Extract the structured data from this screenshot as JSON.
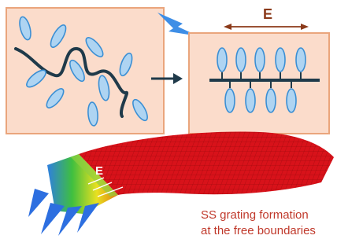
{
  "top_field": {
    "label": "E"
  },
  "sheet_field": {
    "label": "E"
  },
  "caption": {
    "lines": [
      "SS grating formation",
      "at the free boundaries"
    ]
  }
}
